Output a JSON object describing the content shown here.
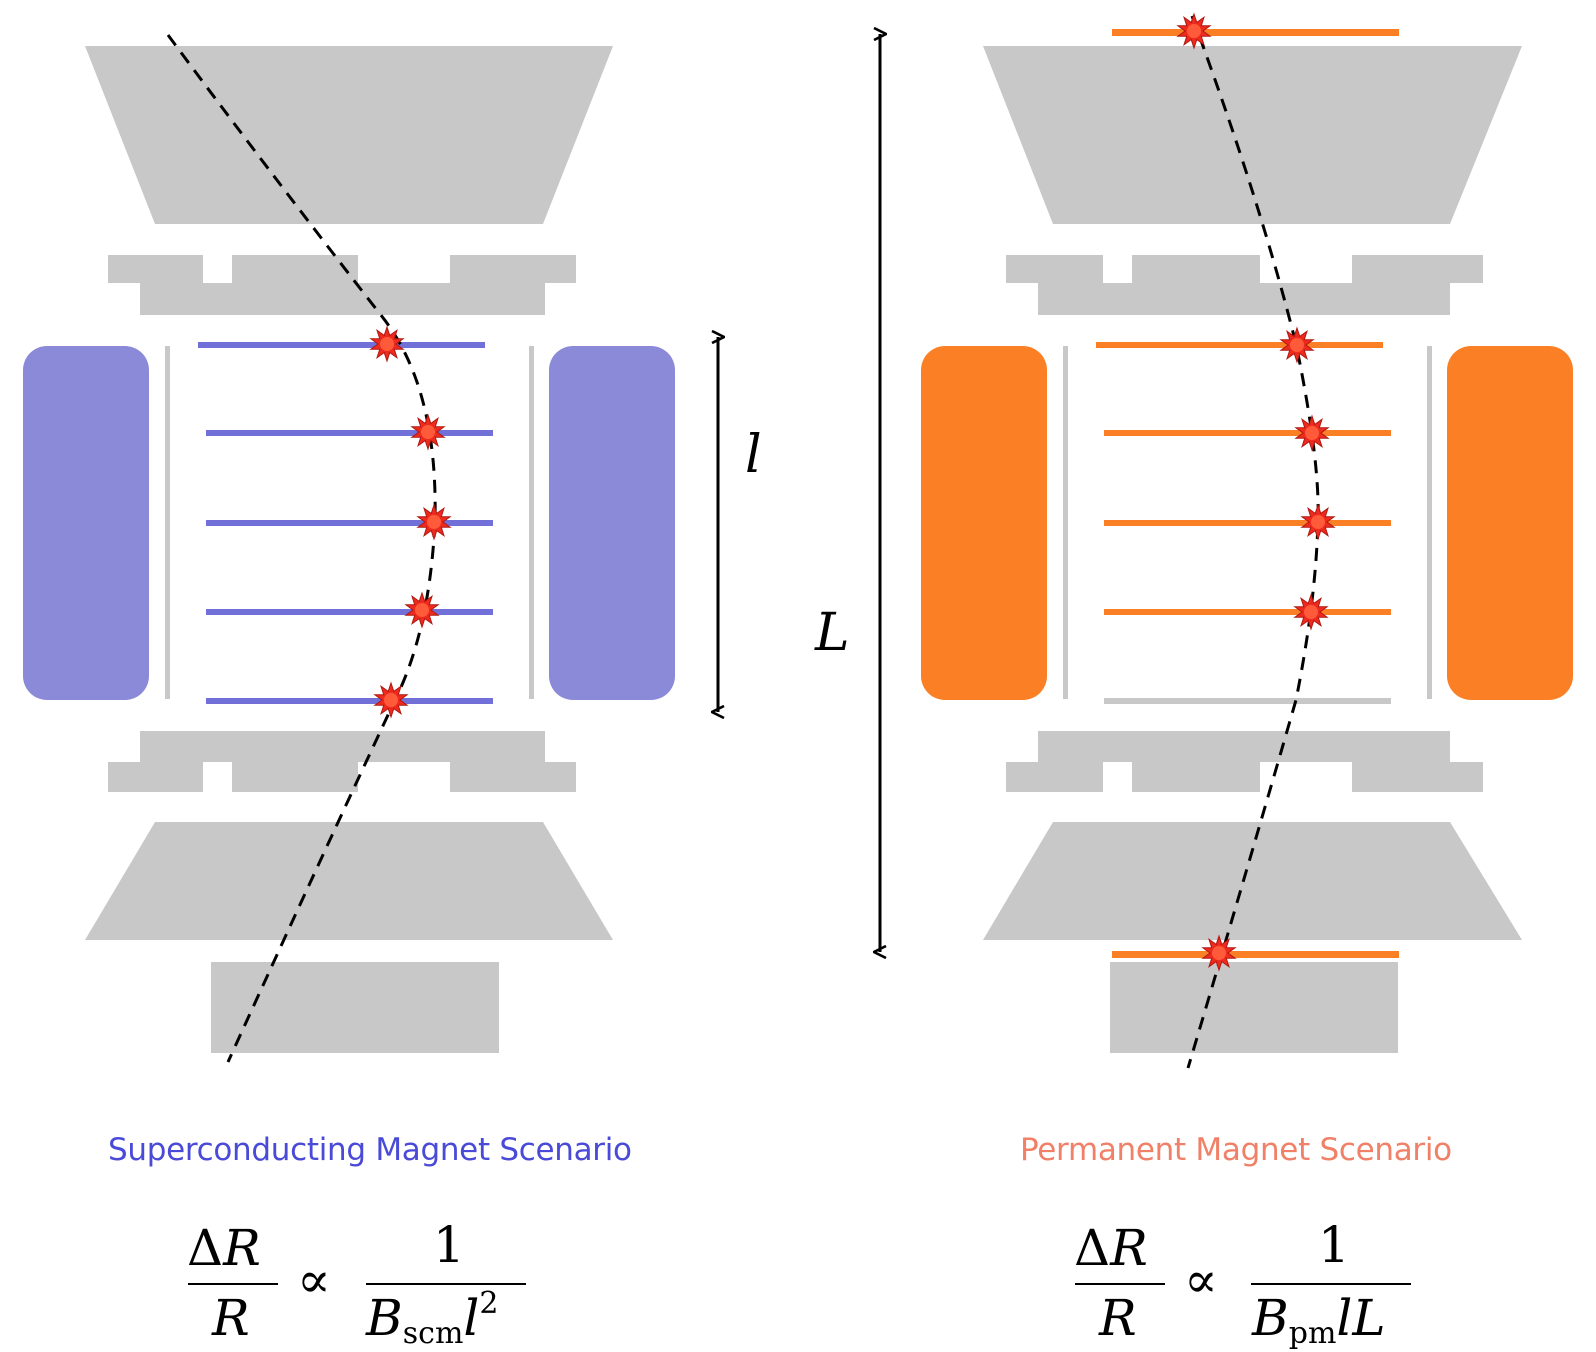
{
  "left_scenario": {
    "caption": "Superconducting Magnet Scenario",
    "caption_color": "#4a4ad8",
    "magnet_color": "#8a8ad8",
    "layer_color": "#7070d8",
    "formula": {
      "numerator_delta": "Δ",
      "numerator_R": "R",
      "denominator_R": "R",
      "proportional": "∝",
      "rhs_numerator": "1",
      "rhs_B": "B",
      "rhs_subscript": "scm",
      "rhs_l": "l",
      "rhs_power": "2"
    },
    "dimension_label": "l"
  },
  "right_scenario": {
    "caption": "Permanent Magnet Scenario",
    "caption_color": "#f08068",
    "magnet_color": "#fb8025",
    "layer_color": "#fb8025",
    "formula": {
      "numerator_delta": "Δ",
      "numerator_R": "R",
      "denominator_R": "R",
      "proportional": "∝",
      "rhs_numerator": "1",
      "rhs_B": "B",
      "rhs_subscript": "pm",
      "rhs_l": "l",
      "rhs_L": "L"
    },
    "dimension_label": "L"
  },
  "colors": {
    "detector_gray": "#c8c8c8",
    "hit_marker": "#ee2a1e",
    "track": "#000000"
  }
}
